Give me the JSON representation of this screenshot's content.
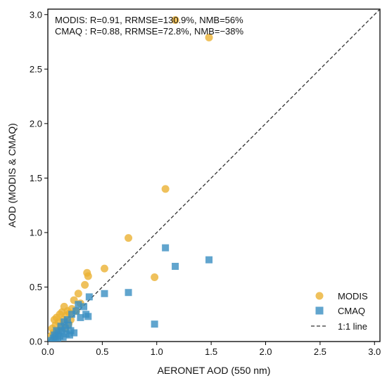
{
  "chart_data": {
    "type": "scatter",
    "title": "",
    "xlabel": "AERONET AOD (550 nm)",
    "ylabel": "AOD (MODIS & CMAQ)",
    "xlim": [
      0,
      3.05
    ],
    "ylim": [
      0,
      3.05
    ],
    "xticks": [
      "0.0",
      "0.5",
      "1.0",
      "1.5",
      "2.0",
      "2.5",
      "3.0"
    ],
    "yticks": [
      "0.0",
      "0.5",
      "1.0",
      "1.5",
      "2.0",
      "2.5",
      "3.0"
    ],
    "grid": false,
    "legend_position": "bottom-right",
    "annotations": [
      "MODIS: R=0.91, RRMSE=130.9%, NMB=56%",
      "CMAQ : R=0.88, RRMSE=72.8%, NMB=−38%"
    ],
    "colors": {
      "MODIS": "#ebb133",
      "CMAQ": "#3a8ec2",
      "line": "#333333"
    },
    "series": [
      {
        "name": "MODIS",
        "marker": "circle",
        "points": [
          [
            0.03,
            0.05
          ],
          [
            0.04,
            0.12
          ],
          [
            0.05,
            0.08
          ],
          [
            0.06,
            0.2
          ],
          [
            0.07,
            0.15
          ],
          [
            0.08,
            0.22
          ],
          [
            0.09,
            0.1
          ],
          [
            0.1,
            0.18
          ],
          [
            0.11,
            0.25
          ],
          [
            0.12,
            0.14
          ],
          [
            0.13,
            0.27
          ],
          [
            0.14,
            0.2
          ],
          [
            0.15,
            0.32
          ],
          [
            0.16,
            0.12
          ],
          [
            0.17,
            0.24
          ],
          [
            0.18,
            0.28
          ],
          [
            0.19,
            0.16
          ],
          [
            0.2,
            0.26
          ],
          [
            0.21,
            0.2
          ],
          [
            0.22,
            0.3
          ],
          [
            0.24,
            0.38
          ],
          [
            0.26,
            0.28
          ],
          [
            0.28,
            0.44
          ],
          [
            0.3,
            0.35
          ],
          [
            0.34,
            0.52
          ],
          [
            0.36,
            0.63
          ],
          [
            0.37,
            0.6
          ],
          [
            0.52,
            0.67
          ],
          [
            0.74,
            0.95
          ],
          [
            0.98,
            0.59
          ],
          [
            1.08,
            1.4
          ],
          [
            1.17,
            2.95
          ],
          [
            1.48,
            2.79
          ]
        ]
      },
      {
        "name": "CMAQ",
        "marker": "square",
        "points": [
          [
            0.03,
            0.01
          ],
          [
            0.05,
            0.03
          ],
          [
            0.06,
            0.06
          ],
          [
            0.07,
            0.04
          ],
          [
            0.08,
            0.1
          ],
          [
            0.09,
            0.02
          ],
          [
            0.1,
            0.08
          ],
          [
            0.11,
            0.05
          ],
          [
            0.12,
            0.14
          ],
          [
            0.13,
            0.1
          ],
          [
            0.14,
            0.04
          ],
          [
            0.15,
            0.18
          ],
          [
            0.16,
            0.12
          ],
          [
            0.17,
            0.07
          ],
          [
            0.18,
            0.2
          ],
          [
            0.19,
            0.15
          ],
          [
            0.2,
            0.06
          ],
          [
            0.21,
            0.1
          ],
          [
            0.22,
            0.25
          ],
          [
            0.24,
            0.08
          ],
          [
            0.26,
            0.28
          ],
          [
            0.28,
            0.34
          ],
          [
            0.3,
            0.22
          ],
          [
            0.33,
            0.32
          ],
          [
            0.35,
            0.25
          ],
          [
            0.37,
            0.23
          ],
          [
            0.38,
            0.41
          ],
          [
            0.52,
            0.44
          ],
          [
            0.74,
            0.45
          ],
          [
            0.98,
            0.16
          ],
          [
            1.08,
            0.86
          ],
          [
            1.17,
            0.69
          ],
          [
            1.48,
            0.75
          ]
        ]
      }
    ],
    "reference_line": {
      "name": "1:1 line",
      "from": [
        0,
        0
      ],
      "to": [
        3.05,
        3.05
      ]
    }
  }
}
